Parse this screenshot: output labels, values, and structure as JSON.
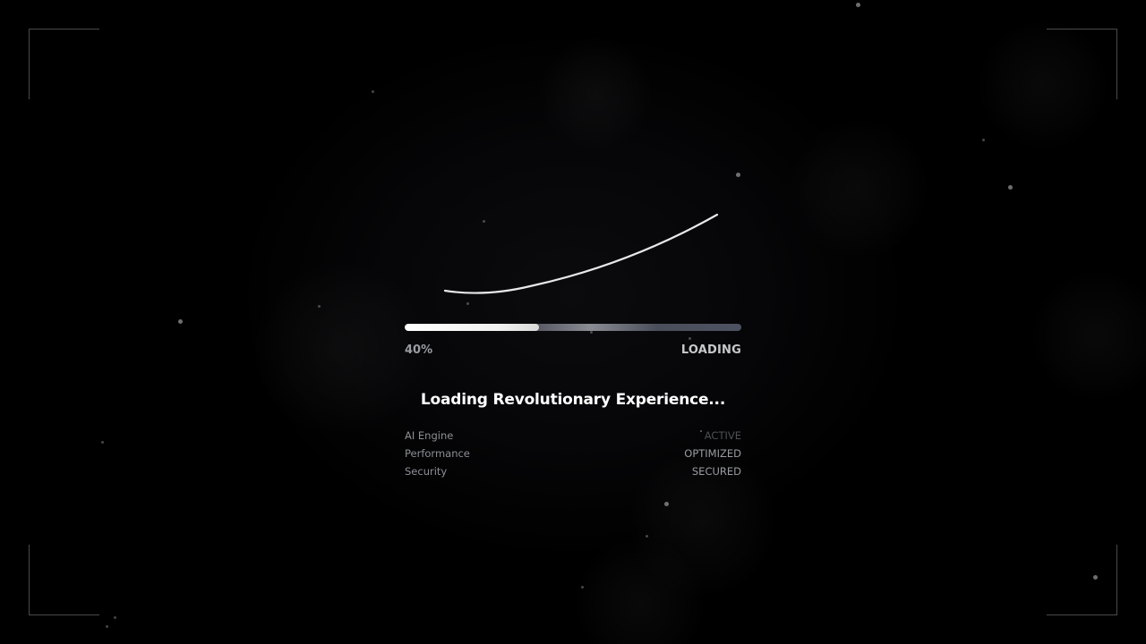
{
  "loader": {
    "progress_percent": 40,
    "progress_label": "40%",
    "status": "LOADING",
    "title": "Loading Revolutionary Experience..."
  },
  "systems": [
    {
      "label": "AI Engine",
      "value": "ACTIVE"
    },
    {
      "label": "Performance",
      "value": "OPTIMIZED"
    },
    {
      "label": "Security",
      "value": "SECURED"
    }
  ],
  "colors": {
    "background": "#000000",
    "accent": "#ffffff",
    "muted_text": "#8d8f96",
    "frame": "#4a4a4e"
  },
  "icons": [
    "loader-arc-icon"
  ]
}
